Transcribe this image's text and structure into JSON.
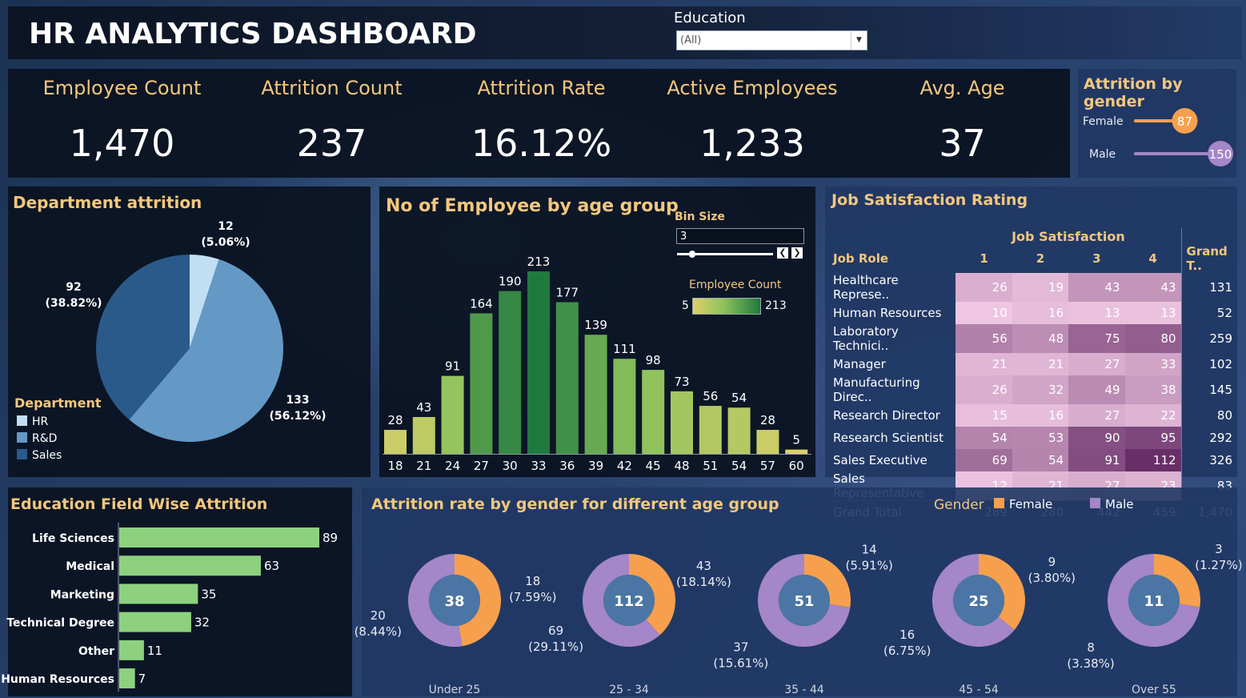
{
  "header": {
    "title": "HR ANALYTICS DASHBOARD",
    "filter_label": "Education",
    "filter_value": "(All)"
  },
  "kpis": [
    {
      "label": "Employee Count",
      "value": "1,470"
    },
    {
      "label": "Attrition Count",
      "value": "237"
    },
    {
      "label": "Attrition Rate",
      "value": "16.12%"
    },
    {
      "label": "Active Employees",
      "value": "1,233"
    },
    {
      "label": "Avg. Age",
      "value": "37"
    }
  ],
  "attrition_by_gender": {
    "title": "Attrition by gender",
    "colors": {
      "female": "#f6a04d",
      "male": "#a486c9"
    }
  },
  "department": {
    "title": "Department attrition",
    "legend_title": "Department",
    "colors": [
      "#c2def2",
      "#6499c6",
      "#2a5a8a"
    ]
  },
  "age_group": {
    "title": "No of Employee by age group",
    "bin_label": "Bin Size",
    "bin_value": "3",
    "legend_title": "Employee Count",
    "legend_min": "5",
    "legend_max": "213"
  },
  "job_satisfaction": {
    "title": "Job Satisfaction Rating",
    "col_header": "Job Satisfaction",
    "row_header": "Job Role",
    "columns": [
      "1",
      "2",
      "3",
      "4",
      "Grand T.."
    ],
    "rows": [
      {
        "role": "Healthcare Represe..",
        "values": [
          "26",
          "19",
          "43",
          "43"
        ],
        "total": "131"
      },
      {
        "role": "Human Resources",
        "values": [
          "10",
          "16",
          "13",
          "13"
        ],
        "total": "52"
      },
      {
        "role": "Laboratory Technici..",
        "values": [
          "56",
          "48",
          "75",
          "80"
        ],
        "total": "259"
      },
      {
        "role": "Manager",
        "values": [
          "21",
          "21",
          "27",
          "33"
        ],
        "total": "102"
      },
      {
        "role": "Manufacturing Direc..",
        "values": [
          "26",
          "32",
          "49",
          "38"
        ],
        "total": "145"
      },
      {
        "role": "Research Director",
        "values": [
          "15",
          "16",
          "27",
          "22"
        ],
        "total": "80"
      },
      {
        "role": "Research Scientist",
        "values": [
          "54",
          "53",
          "90",
          "95"
        ],
        "total": "292"
      },
      {
        "role": "Sales Executive",
        "values": [
          "69",
          "54",
          "91",
          "112"
        ],
        "total": "326"
      },
      {
        "role": "Sales Representative",
        "values": [
          "12",
          "21",
          "27",
          "23"
        ],
        "total": "83"
      }
    ],
    "grand_total": {
      "label": "Grand Total",
      "values": [
        "289",
        "280",
        "442",
        "459"
      ],
      "total": "1,470"
    }
  },
  "education_field": {
    "title": "Education Field Wise Attrition",
    "bar_color": "#8dd17e"
  },
  "age_gender": {
    "title": "Attrition rate by gender for different age group",
    "legend_title": "Gender",
    "legend_female": "Female",
    "legend_male": "Male"
  },
  "chart_data": [
    {
      "type": "bar",
      "title": "Attrition by gender",
      "categories": [
        "Female",
        "Male"
      ],
      "values": [
        87,
        150
      ]
    },
    {
      "type": "pie",
      "title": "Department attrition",
      "categories": [
        "HR",
        "R&D",
        "Sales"
      ],
      "values": [
        12,
        133,
        92
      ],
      "labels": [
        "(5.06%)",
        "(56.12%)",
        "(38.82%)"
      ]
    },
    {
      "type": "bar",
      "title": "No of Employee by age group",
      "categories": [
        "18",
        "21",
        "24",
        "27",
        "30",
        "33",
        "36",
        "39",
        "42",
        "45",
        "48",
        "51",
        "54",
        "57",
        "60"
      ],
      "values": [
        28,
        43,
        91,
        164,
        190,
        213,
        177,
        139,
        111,
        98,
        73,
        56,
        54,
        28,
        5
      ]
    },
    {
      "type": "heatmap",
      "title": "Job Satisfaction Rating",
      "xlabel": "Job Satisfaction",
      "ylabel": "Job Role",
      "x": [
        "1",
        "2",
        "3",
        "4"
      ],
      "y": [
        "Healthcare Represe..",
        "Human Resources",
        "Laboratory Technici..",
        "Manager",
        "Manufacturing Direc..",
        "Research Director",
        "Research Scientist",
        "Sales Executive",
        "Sales Representative"
      ],
      "values": [
        [
          26,
          19,
          43,
          43
        ],
        [
          10,
          16,
          13,
          13
        ],
        [
          56,
          48,
          75,
          80
        ],
        [
          21,
          21,
          27,
          33
        ],
        [
          26,
          32,
          49,
          38
        ],
        [
          15,
          16,
          27,
          22
        ],
        [
          54,
          53,
          90,
          95
        ],
        [
          69,
          54,
          91,
          112
        ],
        [
          12,
          21,
          27,
          23
        ]
      ]
    },
    {
      "type": "bar",
      "title": "Education Field Wise Attrition",
      "categories": [
        "Life Sciences",
        "Medical",
        "Marketing",
        "Technical Degree",
        "Other",
        "Human Resources"
      ],
      "values": [
        89,
        63,
        35,
        32,
        11,
        7
      ]
    },
    {
      "type": "pie",
      "title": "Attrition rate by gender for different age group",
      "groups": [
        {
          "name": "Under 25",
          "total": 38,
          "female": 18,
          "female_pct": "(7.59%)",
          "male": 20,
          "male_pct": "(8.44%)"
        },
        {
          "name": "25 - 34",
          "total": 112,
          "female": 43,
          "female_pct": "(18.14%)",
          "male": 69,
          "male_pct": "(29.11%)"
        },
        {
          "name": "35 - 44",
          "total": 51,
          "female": 14,
          "female_pct": "(5.91%)",
          "male": 37,
          "male_pct": "(15.61%)"
        },
        {
          "name": "45 - 54",
          "total": 25,
          "female": 9,
          "female_pct": "(3.80%)",
          "male": 16,
          "male_pct": "(6.75%)"
        },
        {
          "name": "Over 55",
          "total": 11,
          "female": 3,
          "female_pct": "(1.27%)",
          "male": 8,
          "male_pct": "(3.38%)"
        }
      ]
    }
  ]
}
